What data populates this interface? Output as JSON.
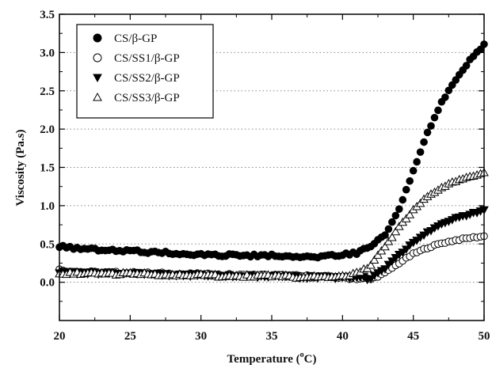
{
  "chart_data": {
    "type": "scatter",
    "xlabel": "Temperature (",
    "xlabel_sup": "o",
    "xlabel_end": "C)",
    "ylabel": "Viscosity (Pa.s)",
    "xlim": [
      20,
      50
    ],
    "ylim": [
      -0.5,
      3.5
    ],
    "x_ticks": [
      "20",
      "25",
      "30",
      "35",
      "40",
      "45",
      "50"
    ],
    "y_ticks": [
      "0.0",
      "0.5",
      "1.0",
      "1.5",
      "2.0",
      "2.5",
      "3.0",
      "3.5"
    ],
    "grid": "horizontal dotted",
    "legend_position": "top-left",
    "series": [
      {
        "name": "CS/β-GP",
        "marker": "filled-circle",
        "color": "#000000",
        "key": [
          [
            20,
            0.47
          ],
          [
            22,
            0.43
          ],
          [
            25,
            0.41
          ],
          [
            28,
            0.38
          ],
          [
            30,
            0.36
          ],
          [
            33,
            0.35
          ],
          [
            35,
            0.35
          ],
          [
            37,
            0.32
          ],
          [
            39,
            0.34
          ],
          [
            40,
            0.36
          ],
          [
            41,
            0.38
          ],
          [
            42,
            0.47
          ],
          [
            43,
            0.62
          ],
          [
            44,
            0.95
          ],
          [
            45,
            1.45
          ],
          [
            46,
            1.95
          ],
          [
            47,
            2.35
          ],
          [
            48,
            2.65
          ],
          [
            49,
            2.9
          ],
          [
            50,
            3.1
          ]
        ]
      },
      {
        "name": "CS/SS1/β-GP",
        "marker": "open-circle",
        "color": "#000000",
        "key": [
          [
            20,
            0.16
          ],
          [
            22,
            0.13
          ],
          [
            25,
            0.12
          ],
          [
            28,
            0.11
          ],
          [
            30,
            0.1
          ],
          [
            33,
            0.09
          ],
          [
            35,
            0.09
          ],
          [
            37,
            0.08
          ],
          [
            39,
            0.07
          ],
          [
            40,
            0.06
          ],
          [
            41,
            0.05
          ],
          [
            42,
            0.04
          ],
          [
            43,
            0.12
          ],
          [
            44,
            0.25
          ],
          [
            45,
            0.37
          ],
          [
            46,
            0.45
          ],
          [
            47,
            0.51
          ],
          [
            48,
            0.55
          ],
          [
            49,
            0.58
          ],
          [
            50,
            0.6
          ]
        ]
      },
      {
        "name": "CS/SS2/β-GP",
        "marker": "filled-triangle-down",
        "color": "#000000",
        "key": [
          [
            20,
            0.13
          ],
          [
            22,
            0.12
          ],
          [
            25,
            0.11
          ],
          [
            28,
            0.1
          ],
          [
            30,
            0.09
          ],
          [
            33,
            0.08
          ],
          [
            35,
            0.08
          ],
          [
            37,
            0.07
          ],
          [
            39,
            0.07
          ],
          [
            40,
            0.06
          ],
          [
            41,
            0.06
          ],
          [
            42,
            0.05
          ],
          [
            43,
            0.18
          ],
          [
            44,
            0.36
          ],
          [
            45,
            0.52
          ],
          [
            46,
            0.65
          ],
          [
            47,
            0.76
          ],
          [
            48,
            0.84
          ],
          [
            49,
            0.89
          ],
          [
            50,
            0.94
          ]
        ]
      },
      {
        "name": "CS/SS3/β-GP",
        "marker": "open-triangle-up",
        "color": "#000000",
        "key": [
          [
            20,
            0.12
          ],
          [
            22,
            0.11
          ],
          [
            25,
            0.11
          ],
          [
            28,
            0.1
          ],
          [
            30,
            0.09
          ],
          [
            33,
            0.08
          ],
          [
            35,
            0.08
          ],
          [
            37,
            0.07
          ],
          [
            39,
            0.07
          ],
          [
            40,
            0.08
          ],
          [
            41,
            0.12
          ],
          [
            42,
            0.22
          ],
          [
            43,
            0.47
          ],
          [
            44,
            0.72
          ],
          [
            45,
            0.95
          ],
          [
            46,
            1.12
          ],
          [
            47,
            1.24
          ],
          [
            48,
            1.32
          ],
          [
            49,
            1.38
          ],
          [
            50,
            1.44
          ]
        ]
      }
    ]
  }
}
